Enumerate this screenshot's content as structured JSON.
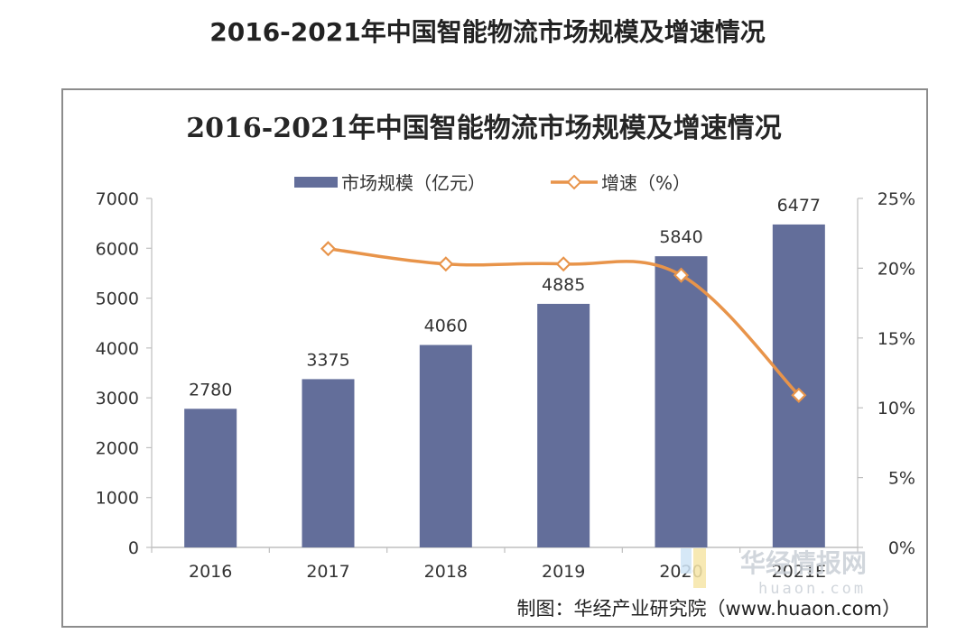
{
  "page": {
    "title": "2016-2021年中国智能物流市场规模及增速情况"
  },
  "chart_data": {
    "type": "bar",
    "title": "2016-2021年中国智能物流市场规模及增速情况",
    "categories": [
      "2016",
      "2017",
      "2018",
      "2019",
      "2020",
      "2021E"
    ],
    "series": [
      {
        "name": "市场规模（亿元）",
        "type": "bar",
        "axis": "left",
        "color": "#636e9a",
        "values": [
          2780,
          3375,
          4060,
          4885,
          5840,
          6477
        ],
        "data_labels": [
          "2780",
          "3375",
          "4060",
          "4885",
          "5840",
          "6477"
        ]
      },
      {
        "name": "增速（%）",
        "type": "line",
        "axis": "right",
        "color": "#e8944a",
        "marker": "diamond",
        "values": [
          null,
          21.4,
          20.3,
          20.3,
          19.5,
          10.9
        ]
      }
    ],
    "y_left": {
      "min": 0,
      "max": 7000,
      "ticks": [
        0,
        1000,
        2000,
        3000,
        4000,
        5000,
        6000,
        7000
      ],
      "tick_labels": [
        "0",
        "1000",
        "2000",
        "3000",
        "4000",
        "5000",
        "6000",
        "7000"
      ]
    },
    "y_right": {
      "min": 0,
      "max": 25,
      "ticks": [
        0,
        5,
        10,
        15,
        20,
        25
      ],
      "tick_labels": [
        "0%",
        "5%",
        "10%",
        "15%",
        "20%",
        "25%"
      ]
    },
    "xlabel": "",
    "ylabel": "",
    "grid": false,
    "legend_position": "top-center"
  },
  "source": {
    "text": "制图：华经产业研究院（www.huaon.com）"
  },
  "watermark": {
    "name": "华经情报网",
    "domain": "huaon.com"
  }
}
